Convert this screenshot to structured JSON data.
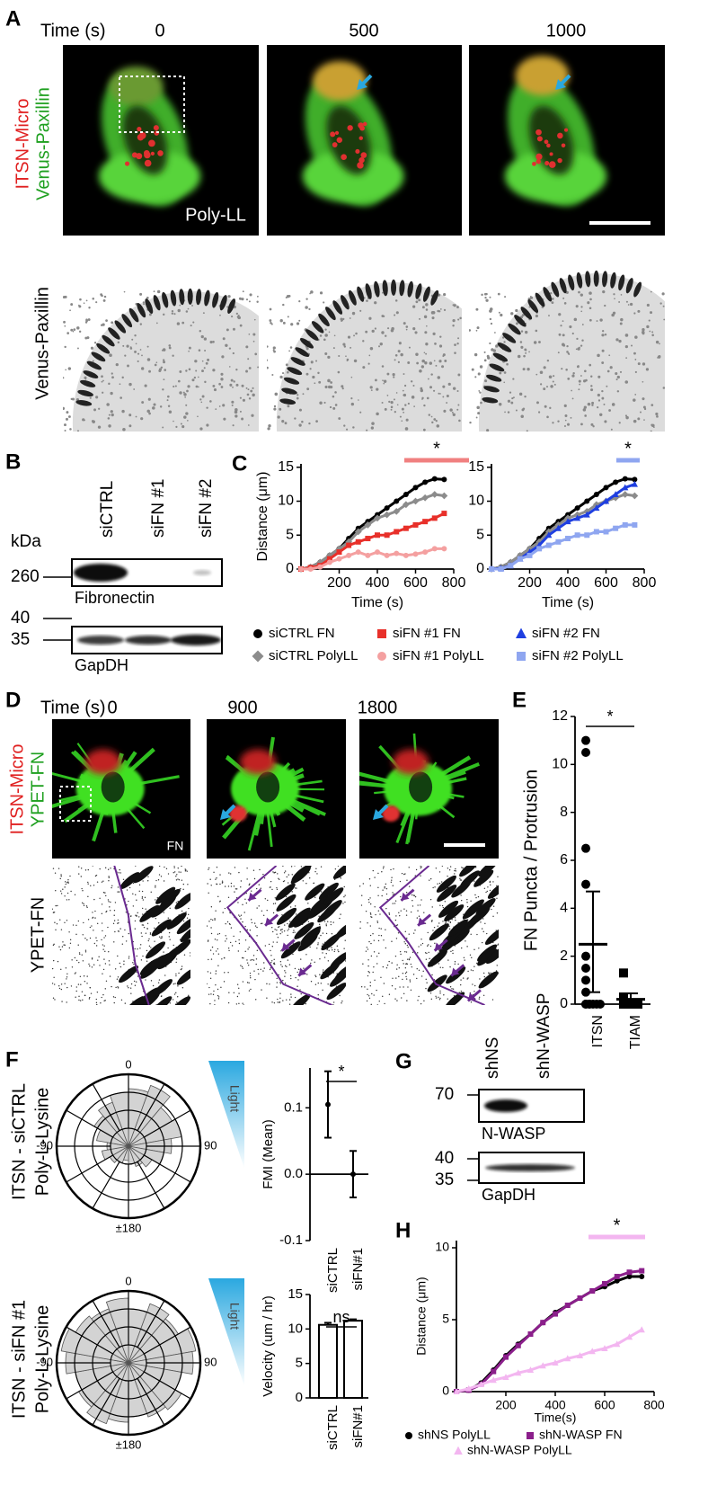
{
  "panel_labels": [
    "A",
    "B",
    "C",
    "D",
    "E",
    "F",
    "G",
    "H"
  ],
  "panel_a": {
    "time_label": "Time (s)",
    "times": [
      0,
      500,
      1000
    ],
    "channels": [
      "ITSN-Micro",
      "Venus-Paxillin"
    ],
    "condition": "Poly-LL",
    "zoom_label": "Venus-Paxillin"
  },
  "panel_b": {
    "kda": "kDa",
    "lanes": [
      "siCTRL",
      "siFN #1",
      "siFN #2"
    ],
    "blots": [
      {
        "name": "Fibronectin",
        "markers": [
          260
        ]
      },
      {
        "name": "GapDH",
        "markers": [
          40,
          35
        ]
      }
    ]
  },
  "panel_d": {
    "time_label": "Time (s)",
    "times": [
      0,
      900,
      1800
    ],
    "channels": [
      "ITSN-Micro",
      "YPET-FN"
    ],
    "condition": "FN",
    "zoom_label": "YPET-FN"
  },
  "panel_f": {
    "rows": [
      [
        "ITSN - siCTRL",
        "Poly-L-Lysine"
      ],
      [
        "ITSN - siFN #1",
        "Poly-L-Lysine"
      ]
    ],
    "light": "Light"
  },
  "panel_g": {
    "lanes": [
      "shNS",
      "shN-WASP"
    ],
    "blots": [
      {
        "name": "N-WASP",
        "markers": [
          70
        ]
      },
      {
        "name": "GapDH",
        "markers": [
          40,
          35
        ]
      }
    ]
  },
  "chart_data": [
    {
      "type": "line",
      "ylabel": "Distance (μm)",
      "xlabel": "Time (s)",
      "annotation": "*",
      "x": [
        0,
        50,
        100,
        150,
        200,
        250,
        300,
        350,
        400,
        450,
        500,
        550,
        600,
        650,
        700,
        750
      ],
      "xlim": [
        0,
        800
      ],
      "xticks": [
        200,
        400,
        600,
        800
      ],
      "ylim": [
        0,
        15.5
      ],
      "yticks": [
        0,
        5,
        10,
        15
      ],
      "series": [
        {
          "name": "siCTRL FN",
          "color": "#000000",
          "marker": "circle",
          "values": [
            0,
            0.3,
            1,
            2,
            3,
            4.5,
            6,
            7,
            8,
            9,
            10,
            11,
            12,
            12.8,
            13.3,
            13.2
          ]
        },
        {
          "name": "siCTRL PolyLL",
          "color": "#8c8c8c",
          "marker": "diamond",
          "values": [
            0,
            0.3,
            1,
            2,
            3,
            4,
            5.5,
            6.5,
            7.5,
            8,
            8.5,
            9.5,
            10,
            10.5,
            11,
            10.8
          ]
        },
        {
          "name": "siFN #1 FN",
          "color": "#e8302a",
          "marker": "square",
          "values": [
            0,
            0.2,
            0.5,
            1.5,
            2.5,
            3.5,
            4,
            4.5,
            5,
            5,
            5.5,
            6,
            6.5,
            7,
            7.5,
            8.2
          ]
        },
        {
          "name": "siFN #1 PolyLL",
          "color": "#f4a0a0",
          "marker": "circle",
          "values": [
            0,
            0,
            0.3,
            1,
            1.5,
            2,
            2.5,
            2,
            2.5,
            2,
            2.3,
            2,
            2.2,
            2.5,
            3,
            3
          ]
        },
        {
          "name": "siFN #2 FN",
          "color": "#1f3fe0",
          "marker": "triangle",
          "values": [
            0,
            0.1,
            0.5,
            1.5,
            2.5,
            3.5,
            5,
            6,
            7,
            7.5,
            8,
            9,
            10,
            11,
            12,
            12.5
          ]
        },
        {
          "name": "siFN #2 PolyLL",
          "color": "#8fa6f0",
          "marker": "square",
          "values": [
            0,
            0,
            0.5,
            1.5,
            2,
            3,
            3.5,
            4,
            4.5,
            5,
            5,
            5.5,
            5.5,
            6,
            6.5,
            6.5
          ]
        }
      ]
    },
    {
      "type": "dot",
      "ylabel": "FN Puncta / Protrusion",
      "annotation": "*",
      "categories": [
        "ITSN",
        "TIAM"
      ],
      "ylim": [
        0,
        12
      ],
      "yticks": [
        0,
        2,
        4,
        6,
        8,
        10,
        12
      ],
      "groups": [
        {
          "marker": "circle",
          "values": [
            11,
            10.5,
            6.5,
            5,
            2,
            1.5,
            1,
            0.5,
            0,
            0,
            0,
            0,
            0,
            0,
            0
          ],
          "mean": 2.5,
          "ci": [
            0.5,
            4.7
          ]
        },
        {
          "marker": "square",
          "values": [
            1.3,
            0.3,
            0.2,
            0,
            0,
            0,
            0,
            0
          ],
          "mean": 0.2,
          "ci": [
            0,
            0.45
          ]
        }
      ]
    },
    {
      "type": "rose",
      "angle_labels": [
        "0",
        "-90",
        "90",
        "±180"
      ],
      "rlim": [
        0,
        4
      ],
      "color": "#d3d3d3",
      "series": [
        {
          "values": [
            3.2,
            3.6,
            2.8,
            3,
            2.4,
            2,
            1.5,
            1.2,
            1,
            0.8,
            1,
            1.2,
            1.5,
            1.2,
            1.8,
            2.2,
            2.6,
            3
          ]
        },
        {
          "values": [
            3,
            3.5,
            3.2,
            3.8,
            3.6,
            3,
            3.4,
            3.2,
            3,
            3.3,
            3.6,
            3.2,
            3,
            3.5,
            3.8,
            3.4,
            3.2,
            3.6
          ]
        }
      ]
    },
    {
      "type": "errorbar",
      "ylabel": "FMI (Mean)",
      "annotation": "*",
      "categories": [
        "siCTRL",
        "siFN#1"
      ],
      "values": [
        0.105,
        0
      ],
      "errors": [
        0.05,
        0.035
      ],
      "ylim": [
        -0.1,
        0.16
      ],
      "yticks": [
        -0.1,
        {
          "value": 0,
          "label": "0.0"
        },
        0.1
      ]
    },
    {
      "type": "bar",
      "ylabel": "Velocity (um / hr)",
      "annotation": "ns",
      "categories": [
        "siCTRL",
        "siFN#1"
      ],
      "values": [
        10.6,
        11.2
      ],
      "errors": [
        0.3,
        0.2
      ],
      "color": "#ffffff",
      "ylim": [
        0,
        15
      ],
      "yticks": [
        0,
        5,
        10,
        15
      ]
    },
    {
      "type": "line",
      "ylabel": "Distance (μm)",
      "xlabel": "Time(s)",
      "annotation": "*",
      "x": [
        0,
        50,
        100,
        150,
        200,
        250,
        300,
        350,
        400,
        450,
        500,
        550,
        600,
        650,
        700,
        750
      ],
      "xlim": [
        0,
        800
      ],
      "xticks": [
        200,
        400,
        600,
        800
      ],
      "ylim": [
        0,
        10.5
      ],
      "yticks": [
        0,
        5,
        10
      ],
      "series": [
        {
          "name": "shNS PolyLL",
          "color": "#000000",
          "marker": "circle",
          "values": [
            0,
            0.1,
            0.6,
            1.5,
            2.5,
            3.3,
            4,
            4.8,
            5.5,
            6,
            6.5,
            7,
            7.3,
            7.7,
            8,
            8
          ]
        },
        {
          "name": "shN-WASP FN",
          "color": "#8b1f8b",
          "marker": "square",
          "values": [
            0,
            0.1,
            0.5,
            1.4,
            2.4,
            3.2,
            4,
            4.8,
            5.4,
            6,
            6.5,
            7,
            7.5,
            8,
            8.3,
            8.4
          ]
        },
        {
          "name": "shN-WASP PolyLL",
          "color": "#f3b6f0",
          "marker": "triangle",
          "values": [
            0,
            0.2,
            0.5,
            0.8,
            1,
            1.3,
            1.5,
            1.8,
            2,
            2.3,
            2.5,
            2.8,
            3,
            3.3,
            3.8,
            4.3
          ]
        }
      ]
    }
  ]
}
